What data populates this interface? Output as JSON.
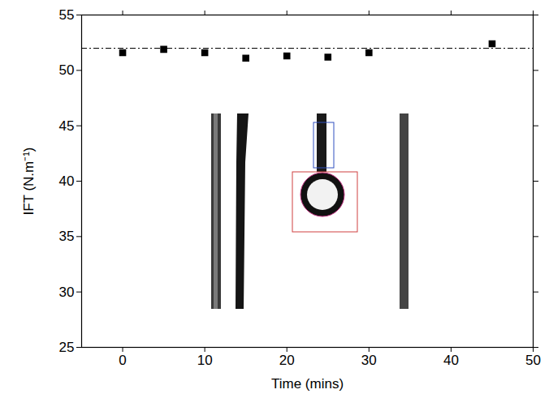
{
  "chart_data": {
    "type": "scatter",
    "x_label": "Time (mins)",
    "y_label": "IFT (N.m⁻¹)",
    "x": [
      0,
      5,
      10,
      15,
      20,
      25,
      30,
      45
    ],
    "values": [
      51.6,
      51.9,
      51.6,
      51.1,
      51.3,
      51.2,
      51.6,
      52.4
    ],
    "color": "#000000",
    "marker": "square",
    "hline": 52,
    "xlim": [
      -5,
      50
    ],
    "xticks": [
      0,
      10,
      20,
      30,
      40,
      50
    ],
    "ylim": [
      25,
      55
    ],
    "yticks": [
      25,
      30,
      35,
      40,
      45,
      50,
      55
    ],
    "grid": false
  }
}
